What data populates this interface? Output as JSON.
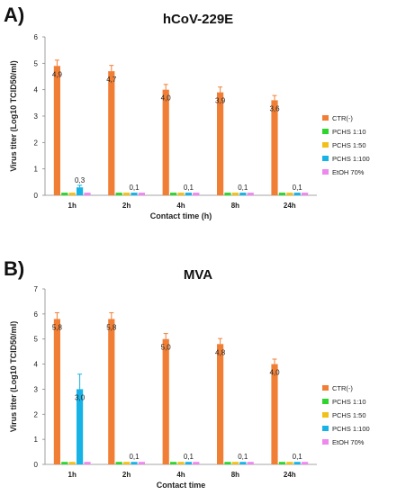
{
  "chart_data": [
    {
      "panel": "A)",
      "type": "bar",
      "title": "hCoV-229E",
      "xlabel": "Contact time (h)",
      "ylabel": "Virus titer (Log10 TCID50/ml)",
      "ylim": [
        0,
        6
      ],
      "yticks": [
        0,
        1,
        2,
        3,
        4,
        5,
        6
      ],
      "categories": [
        "1h",
        "2h",
        "4h",
        "8h",
        "24h"
      ],
      "series": [
        {
          "name": "CTR(-)",
          "color": "#f07f35",
          "values": [
            4.9,
            4.7,
            4.0,
            3.9,
            3.6
          ],
          "errors": [
            0.22,
            0.22,
            0.2,
            0.2,
            0.18
          ]
        },
        {
          "name": "PCHS 1:10",
          "color": "#2fd42f",
          "values": [
            0.1,
            0.1,
            0.1,
            0.1,
            0.1
          ],
          "errors": [
            0,
            0,
            0,
            0,
            0
          ]
        },
        {
          "name": "PCHS 1:50",
          "color": "#f2c118",
          "values": [
            0.1,
            0.1,
            0.1,
            0.1,
            0.1
          ],
          "errors": [
            0,
            0,
            0,
            0,
            0
          ]
        },
        {
          "name": "PCHS 1:100",
          "color": "#18b3e6",
          "values": [
            0.3,
            0.1,
            0.1,
            0.1,
            0.1
          ],
          "errors": [
            0.08,
            0,
            0,
            0,
            0
          ]
        },
        {
          "name": "EtOH 70%",
          "color": "#ee88ee",
          "values": [
            0.1,
            0.1,
            0.1,
            0.1,
            0.1
          ],
          "errors": [
            0,
            0,
            0,
            0,
            0
          ]
        }
      ],
      "data_labels": [
        {
          "series": 0,
          "category": 0,
          "text": "4,9"
        },
        {
          "series": 0,
          "category": 1,
          "text": "4,7"
        },
        {
          "series": 0,
          "category": 2,
          "text": "4,0"
        },
        {
          "series": 0,
          "category": 3,
          "text": "3,9"
        },
        {
          "series": 0,
          "category": 4,
          "text": "3,6"
        },
        {
          "series": 3,
          "category": 0,
          "text": "0,3"
        },
        {
          "series": 3,
          "category": 1,
          "text": "0,1"
        },
        {
          "series": 3,
          "category": 2,
          "text": "0,1"
        },
        {
          "series": 3,
          "category": 3,
          "text": "0,1"
        },
        {
          "series": 3,
          "category": 4,
          "text": "0,1"
        }
      ],
      "legend_position": "right",
      "grid": false
    },
    {
      "panel": "B)",
      "type": "bar",
      "title": "MVA",
      "xlabel": "Contact time",
      "ylabel": "Virus titer (Log10 TCID50/ml)",
      "ylim": [
        0,
        7
      ],
      "yticks": [
        0,
        1,
        2,
        3,
        4,
        5,
        6,
        7
      ],
      "categories": [
        "1h",
        "2h",
        "4h",
        "8h",
        "24h"
      ],
      "series": [
        {
          "name": "CTR(-)",
          "color": "#f07f35",
          "values": [
            5.8,
            5.8,
            5.0,
            4.8,
            4.0
          ],
          "errors": [
            0.25,
            0.25,
            0.22,
            0.22,
            0.2
          ]
        },
        {
          "name": "PCHS 1:10",
          "color": "#2fd42f",
          "values": [
            0.1,
            0.1,
            0.1,
            0.1,
            0.1
          ],
          "errors": [
            0,
            0,
            0,
            0,
            0
          ]
        },
        {
          "name": "PCHS 1:50",
          "color": "#f2c118",
          "values": [
            0.1,
            0.1,
            0.1,
            0.1,
            0.1
          ],
          "errors": [
            0,
            0,
            0,
            0,
            0
          ]
        },
        {
          "name": "PCHS 1:100",
          "color": "#18b3e6",
          "values": [
            3.0,
            0.1,
            0.1,
            0.1,
            0.1
          ],
          "errors": [
            0.6,
            0,
            0,
            0,
            0
          ]
        },
        {
          "name": "EtOH 70%",
          "color": "#ee88ee",
          "values": [
            0.1,
            0.1,
            0.1,
            0.1,
            0.1
          ],
          "errors": [
            0,
            0,
            0,
            0,
            0
          ]
        }
      ],
      "data_labels": [
        {
          "series": 0,
          "category": 0,
          "text": "5,8"
        },
        {
          "series": 0,
          "category": 1,
          "text": "5,8"
        },
        {
          "series": 0,
          "category": 2,
          "text": "5,0"
        },
        {
          "series": 0,
          "category": 3,
          "text": "4,8"
        },
        {
          "series": 0,
          "category": 4,
          "text": "4,0"
        },
        {
          "series": 3,
          "category": 0,
          "text": "3,0"
        },
        {
          "series": 3,
          "category": 1,
          "text": "0,1"
        },
        {
          "series": 3,
          "category": 2,
          "text": "0,1"
        },
        {
          "series": 3,
          "category": 3,
          "text": "0,1"
        },
        {
          "series": 3,
          "category": 4,
          "text": "0,1"
        }
      ],
      "legend_position": "right",
      "grid": false
    }
  ]
}
